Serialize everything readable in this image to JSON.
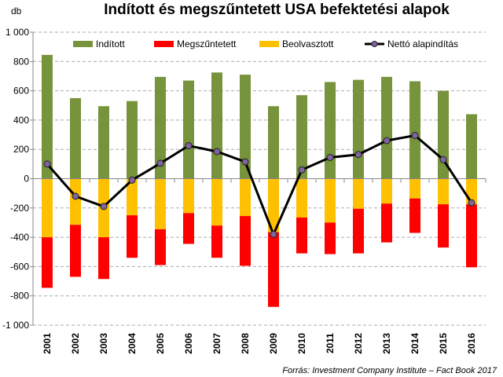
{
  "chart_data": {
    "type": "bar",
    "title": "Indított és megszűntetett USA befektetési alapok",
    "ylabel": "db",
    "ylim": [
      -1000,
      1000
    ],
    "yticks": [
      "1 000",
      "800",
      "600",
      "400",
      "200",
      "0",
      "-200",
      "-400",
      "-600",
      "-800",
      "-1 000"
    ],
    "ytick_values": [
      1000,
      800,
      600,
      400,
      200,
      0,
      -200,
      -400,
      -600,
      -800,
      -1000
    ],
    "grid": true,
    "legend_position": "top",
    "categories": [
      "2001",
      "2002",
      "2003",
      "2004",
      "2005",
      "2006",
      "2007",
      "2008",
      "2009",
      "2010",
      "2011",
      "2012",
      "2013",
      "2014",
      "2015",
      "2016"
    ],
    "series": [
      {
        "name": "Indított",
        "kind": "bar",
        "color": "#77933c",
        "values": [
          845,
          550,
          495,
          530,
          695,
          670,
          725,
          710,
          495,
          570,
          660,
          675,
          695,
          665,
          600,
          440
        ]
      },
      {
        "name": "Megszűntetett",
        "kind": "bar",
        "color": "#ff0000",
        "values": [
          -345,
          -355,
          -285,
          -290,
          -245,
          -210,
          -220,
          -340,
          -510,
          -245,
          -215,
          -305,
          -265,
          -235,
          -295,
          -430
        ]
      },
      {
        "name": "Beolvasztott",
        "kind": "bar",
        "color": "#ffc000",
        "values": [
          -400,
          -315,
          -400,
          -250,
          -345,
          -235,
          -320,
          -255,
          -365,
          -265,
          -300,
          -205,
          -170,
          -135,
          -175,
          -175
        ]
      },
      {
        "name": "Nettó alapindítás",
        "kind": "line",
        "color": "#000000",
        "marker_color": "#8064a2",
        "values": [
          100,
          -120,
          -190,
          -10,
          105,
          225,
          185,
          115,
          -380,
          60,
          145,
          165,
          260,
          295,
          130,
          -165
        ]
      }
    ],
    "source": "Forrás: Investment Company Institute – Fact Book 2017"
  }
}
